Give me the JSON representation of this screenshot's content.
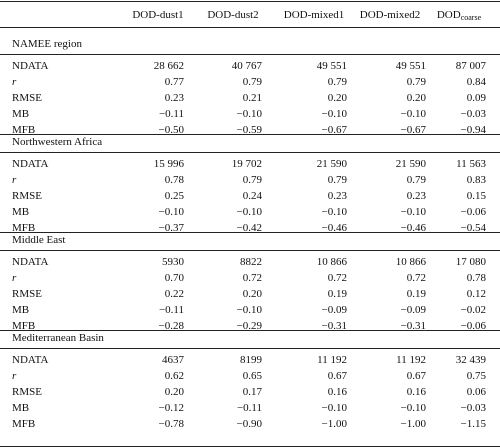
{
  "columns": [
    {
      "main": "DOD-dust1",
      "sub": ""
    },
    {
      "main": "DOD-dust2",
      "sub": ""
    },
    {
      "main": "DOD-mixed1",
      "sub": ""
    },
    {
      "main": "DOD-mixed2",
      "sub": ""
    },
    {
      "main": "DOD",
      "sub": "coarse"
    }
  ],
  "metric_labels": [
    "NDATA",
    "r",
    "RMSE",
    "MB",
    "MFB"
  ],
  "sections": [
    {
      "title": "NAMEE region",
      "rows": [
        [
          "28 662",
          "40 767",
          "49 551",
          "49 551",
          "87 007"
        ],
        [
          "0.77",
          "0.79",
          "0.79",
          "0.79",
          "0.84"
        ],
        [
          "0.23",
          "0.21",
          "0.20",
          "0.20",
          "0.09"
        ],
        [
          "−0.11",
          "−0.10",
          "−0.10",
          "−0.10",
          "−0.03"
        ],
        [
          "−0.50",
          "−0.59",
          "−0.67",
          "−0.67",
          "−0.94"
        ]
      ]
    },
    {
      "title": "Northwestern Africa",
      "rows": [
        [
          "15 996",
          "19 702",
          "21 590",
          "21 590",
          "11 563"
        ],
        [
          "0.78",
          "0.79",
          "0.79",
          "0.79",
          "0.83"
        ],
        [
          "0.25",
          "0.24",
          "0.23",
          "0.23",
          "0.15"
        ],
        [
          "−0.10",
          "−0.10",
          "−0.10",
          "−0.10",
          "−0.06"
        ],
        [
          "−0.37",
          "−0.42",
          "−0.46",
          "−0.46",
          "−0.54"
        ]
      ]
    },
    {
      "title": "Middle East",
      "rows": [
        [
          "5930",
          "8822",
          "10 866",
          "10 866",
          "17 080"
        ],
        [
          "0.70",
          "0.72",
          "0.72",
          "0.72",
          "0.78"
        ],
        [
          "0.22",
          "0.20",
          "0.19",
          "0.19",
          "0.12"
        ],
        [
          "−0.11",
          "−0.10",
          "−0.09",
          "−0.09",
          "−0.02"
        ],
        [
          "−0.28",
          "−0.29",
          "−0.31",
          "−0.31",
          "−0.06"
        ]
      ]
    },
    {
      "title": "Mediterranean Basin",
      "rows": [
        [
          "4637",
          "8199",
          "11 192",
          "11 192",
          "32 439"
        ],
        [
          "0.62",
          "0.65",
          "0.67",
          "0.67",
          "0.75"
        ],
        [
          "0.20",
          "0.17",
          "0.16",
          "0.16",
          "0.06"
        ],
        [
          "−0.12",
          "−0.11",
          "−0.10",
          "−0.10",
          "−0.03"
        ],
        [
          "−0.78",
          "−0.90",
          "−1.00",
          "−1.00",
          "−1.15"
        ]
      ]
    }
  ]
}
